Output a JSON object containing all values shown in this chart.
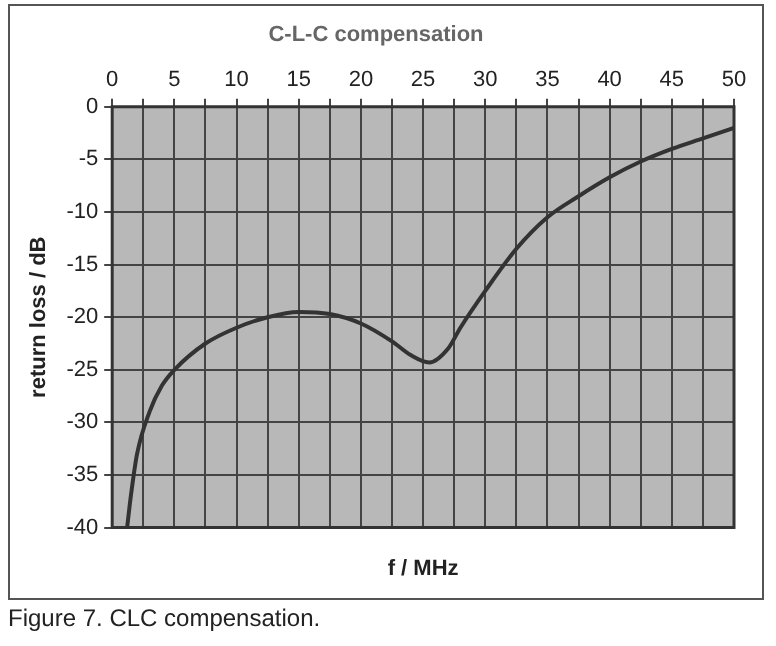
{
  "chart_data": {
    "type": "line",
    "title": "C-L-C compensation",
    "xlabel": "f / MHz",
    "ylabel": "return loss / dB",
    "annotations": [
      "Figure 7. CLC compensation."
    ],
    "series": [
      {
        "color": "#333333",
        "x": [
          1.2,
          1.5,
          2,
          3,
          4,
          5,
          7.5,
          10,
          12.5,
          15,
          17.5,
          20,
          22.5,
          24,
          25.5,
          27,
          28,
          30,
          32.5,
          35,
          37.5,
          40,
          42.5,
          45,
          47.5,
          50
        ],
        "values": [
          -40,
          -37,
          -33,
          -29,
          -26.5,
          -25,
          -22.5,
          -21,
          -20,
          -19.5,
          -19.7,
          -20.6,
          -22.3,
          -23.6,
          -24.3,
          -23,
          -21,
          -17.5,
          -13.5,
          -10.5,
          -8.5,
          -6.7,
          -5.2,
          -4,
          -3,
          -2
        ]
      }
    ],
    "xlim": [
      0,
      50
    ],
    "xticks": [
      0,
      {
        "value": 2.5,
        "label": null
      },
      5,
      {
        "value": 7.5,
        "label": null
      },
      10,
      {
        "value": 12.5,
        "label": null
      },
      15,
      {
        "value": 17.5,
        "label": null
      },
      20,
      {
        "value": 22.5,
        "label": null
      },
      25,
      {
        "value": 27.5,
        "label": null
      },
      30,
      {
        "value": 32.5,
        "label": null
      },
      35,
      {
        "value": 37.5,
        "label": null
      },
      40,
      {
        "value": 42.5,
        "label": null
      },
      45,
      {
        "value": 47.5,
        "label": null
      },
      50
    ],
    "ylim": [
      -40,
      0
    ],
    "yticks": [
      0,
      -5,
      -10,
      -15,
      -20,
      -25,
      -30,
      -35,
      -40
    ],
    "grid": true,
    "legend": false,
    "marker": "none",
    "line_style": "solid"
  }
}
